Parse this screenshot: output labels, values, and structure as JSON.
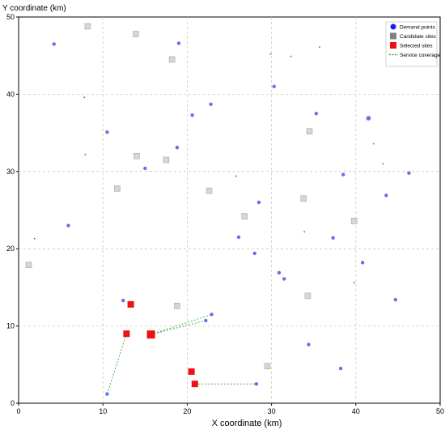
{
  "chart_data": {
    "type": "scatter",
    "xlabel": "X coordinate (km)",
    "ylabel": "Y coordinate   (km)",
    "xlim": [
      0,
      50
    ],
    "ylim": [
      0,
      50
    ],
    "xticks": [
      0,
      10,
      20,
      30,
      40,
      50
    ],
    "yticks": [
      0,
      10,
      20,
      30,
      40,
      50
    ],
    "grid": true,
    "legend_position": "top-right",
    "legend": [
      {
        "label": "Demand points",
        "marker": "circle",
        "color": "#1a1aff"
      },
      {
        "label": "Candidate sites",
        "marker": "square",
        "color": "#808080"
      },
      {
        "label": "Selected sites",
        "marker": "square",
        "color": "#ee1111"
      },
      {
        "label": "Service coverage",
        "marker": "dashed-line",
        "color": "#2e9e2e"
      }
    ],
    "colors": {
      "demand": "#6b6bf0",
      "candidate": "#d6d6d6",
      "candidate_stroke": "#a8a8a8",
      "selected": "#ee1111",
      "coverage": "#33aa33",
      "grid": "#c8c8c8"
    },
    "demand_points": [
      {
        "x": 4.2,
        "y": 46.5,
        "s": 2
      },
      {
        "x": 19.0,
        "y": 46.6,
        "s": 2
      },
      {
        "x": 29.9,
        "y": 45.2,
        "s": 1
      },
      {
        "x": 32.3,
        "y": 44.9,
        "s": 1
      },
      {
        "x": 35.7,
        "y": 46.1,
        "s": 1
      },
      {
        "x": 30.3,
        "y": 41.0,
        "s": 2
      },
      {
        "x": 7.8,
        "y": 39.6,
        "s": 1
      },
      {
        "x": 22.8,
        "y": 38.7,
        "s": 2
      },
      {
        "x": 20.6,
        "y": 37.3,
        "s": 2
      },
      {
        "x": 35.3,
        "y": 37.5,
        "s": 2
      },
      {
        "x": 41.5,
        "y": 36.9,
        "s": 3
      },
      {
        "x": 10.5,
        "y": 35.1,
        "s": 2
      },
      {
        "x": 42.1,
        "y": 33.6,
        "s": 1
      },
      {
        "x": 18.8,
        "y": 33.1,
        "s": 2
      },
      {
        "x": 7.9,
        "y": 32.2,
        "s": 1
      },
      {
        "x": 43.2,
        "y": 31.0,
        "s": 1
      },
      {
        "x": 15.0,
        "y": 30.4,
        "s": 2
      },
      {
        "x": 38.5,
        "y": 29.6,
        "s": 2
      },
      {
        "x": 46.3,
        "y": 29.8,
        "s": 2
      },
      {
        "x": 25.8,
        "y": 29.4,
        "s": 1
      },
      {
        "x": 43.6,
        "y": 26.9,
        "s": 2
      },
      {
        "x": 28.5,
        "y": 26.0,
        "s": 2
      },
      {
        "x": 5.9,
        "y": 23.0,
        "s": 2
      },
      {
        "x": 33.9,
        "y": 22.2,
        "s": 1
      },
      {
        "x": 1.9,
        "y": 21.3,
        "s": 1
      },
      {
        "x": 26.1,
        "y": 21.5,
        "s": 2
      },
      {
        "x": 37.3,
        "y": 21.4,
        "s": 2
      },
      {
        "x": 28.0,
        "y": 19.4,
        "s": 2
      },
      {
        "x": 40.8,
        "y": 18.2,
        "s": 2
      },
      {
        "x": 30.9,
        "y": 16.9,
        "s": 2
      },
      {
        "x": 31.5,
        "y": 16.1,
        "s": 2
      },
      {
        "x": 39.8,
        "y": 15.6,
        "s": 1
      },
      {
        "x": 12.4,
        "y": 13.3,
        "s": 2
      },
      {
        "x": 44.7,
        "y": 13.4,
        "s": 2
      },
      {
        "x": 22.9,
        "y": 11.5,
        "s": 2
      },
      {
        "x": 22.2,
        "y": 10.7,
        "s": 2
      },
      {
        "x": 34.4,
        "y": 7.6,
        "s": 2
      },
      {
        "x": 38.2,
        "y": 4.5,
        "s": 2
      },
      {
        "x": 28.2,
        "y": 2.5,
        "s": 2
      },
      {
        "x": 10.5,
        "y": 1.2,
        "s": 2
      }
    ],
    "candidate_sites": [
      {
        "x": 8.2,
        "y": 48.8
      },
      {
        "x": 13.9,
        "y": 47.8
      },
      {
        "x": 18.2,
        "y": 44.5
      },
      {
        "x": 34.5,
        "y": 35.2
      },
      {
        "x": 14.0,
        "y": 32.0
      },
      {
        "x": 17.5,
        "y": 31.5
      },
      {
        "x": 11.7,
        "y": 27.8
      },
      {
        "x": 22.6,
        "y": 27.5
      },
      {
        "x": 33.8,
        "y": 26.5
      },
      {
        "x": 26.8,
        "y": 24.2
      },
      {
        "x": 39.8,
        "y": 23.6
      },
      {
        "x": 1.2,
        "y": 17.9
      },
      {
        "x": 34.3,
        "y": 13.9
      },
      {
        "x": 18.8,
        "y": 12.6
      },
      {
        "x": 29.5,
        "y": 4.8
      }
    ],
    "selected_sites": [
      {
        "x": 13.3,
        "y": 12.8,
        "size": 8
      },
      {
        "x": 12.8,
        "y": 9.0,
        "size": 8
      },
      {
        "x": 15.7,
        "y": 8.9,
        "size": 10
      },
      {
        "x": 20.5,
        "y": 4.1,
        "size": 8
      },
      {
        "x": 20.9,
        "y": 2.5,
        "size": 8
      }
    ],
    "coverage_links": [
      {
        "from": [
          15.7,
          8.9
        ],
        "to": [
          22.9,
          11.5
        ]
      },
      {
        "from": [
          15.7,
          8.9
        ],
        "to": [
          22.2,
          10.7
        ]
      },
      {
        "from": [
          12.8,
          9.0
        ],
        "to": [
          10.5,
          1.2
        ]
      },
      {
        "from": [
          20.9,
          2.5
        ],
        "to": [
          28.2,
          2.5
        ]
      }
    ]
  }
}
